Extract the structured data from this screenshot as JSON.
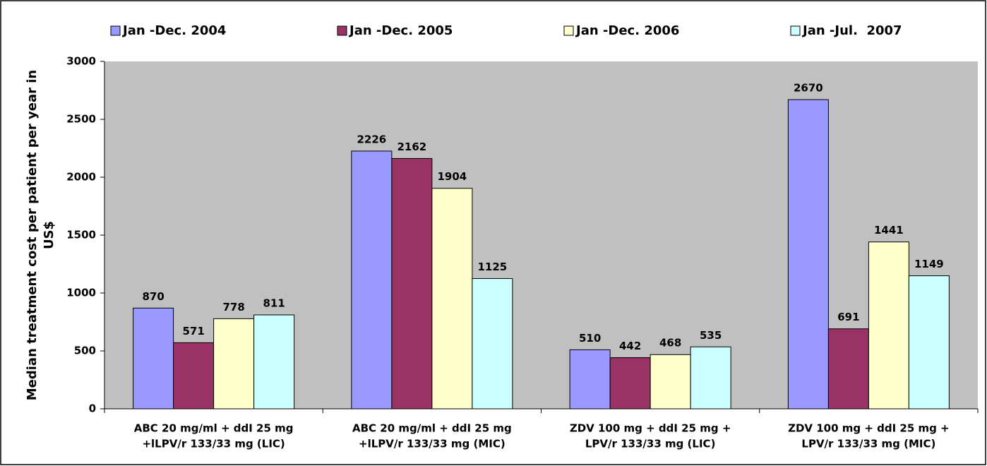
{
  "chart_data": {
    "type": "bar",
    "y_label": [
      "Median treatment cost per patient per year in",
      "US$"
    ],
    "categories": [
      [
        "ABC 20 mg/ml + ddI 25 mg",
        "+lLPV/r 133/33 mg (LIC)"
      ],
      [
        "ABC 20 mg/ml + ddI 25 mg",
        "+lLPV/r 133/33 mg (MIC)"
      ],
      [
        "ZDV 100 mg + ddI 25 mg +",
        "LPV/r 133/33 mg (LIC)"
      ],
      [
        "ZDV 100 mg + ddI 25 mg +",
        "LPV/r 133/33 mg (MIC)"
      ]
    ],
    "series": [
      {
        "name": "Jan -Dec. 2004",
        "color": "#9999ff",
        "values": [
          870,
          2226,
          510,
          2670
        ]
      },
      {
        "name": "Jan -Dec. 2005",
        "color": "#993366",
        "values": [
          571,
          2162,
          442,
          691
        ]
      },
      {
        "name": "Jan -Dec. 2006",
        "color": "#ffffcc",
        "values": [
          778,
          1904,
          468,
          1441
        ]
      },
      {
        "name": "Jan -Jul.  2007",
        "color": "#ccffff",
        "values": [
          811,
          1125,
          535,
          1149
        ]
      }
    ],
    "ylim": [
      0,
      3000
    ],
    "yticks": [
      0,
      500,
      1000,
      1500,
      2000,
      2500,
      3000
    ],
    "grid": false,
    "legend": "top"
  }
}
